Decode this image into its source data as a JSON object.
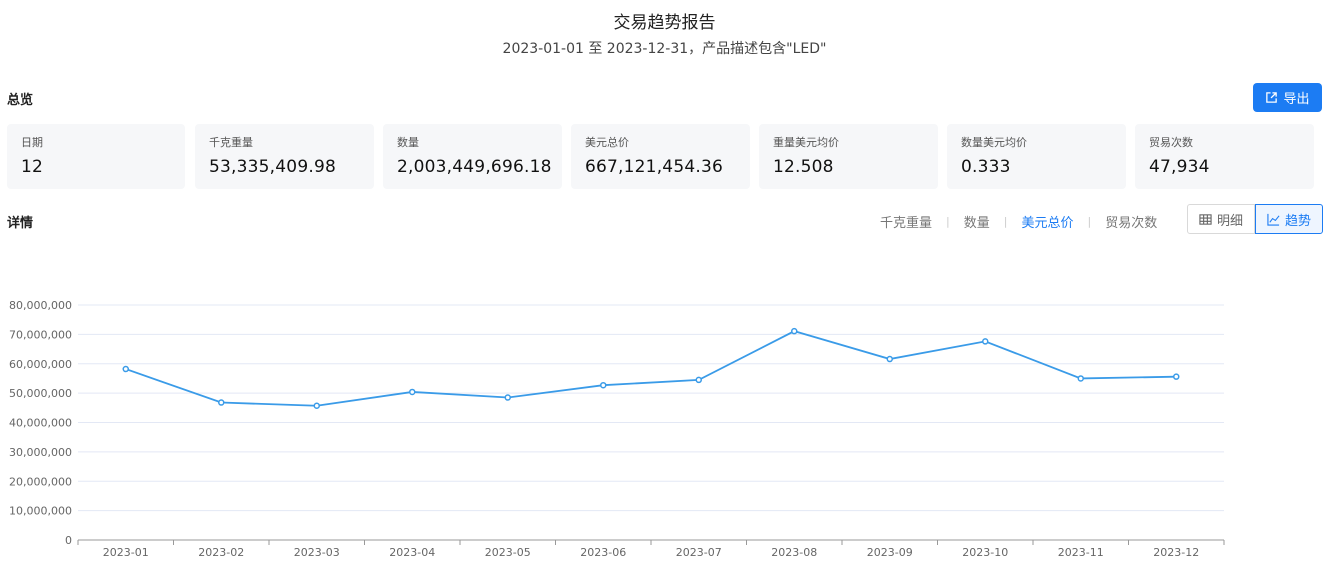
{
  "header": {
    "title": "交易趋势报告",
    "subtitle": "2023-01-01 至 2023-12-31，产品描述包含\"LED\""
  },
  "overview": {
    "label": "总览",
    "export_label": "导出",
    "stats": [
      {
        "label": "日期",
        "value": "12"
      },
      {
        "label": "千克重量",
        "value": "53,335,409.98"
      },
      {
        "label": "数量",
        "value": "2,003,449,696.18"
      },
      {
        "label": "美元总价",
        "value": "667,121,454.36"
      },
      {
        "label": "重量美元均价",
        "value": "12.508"
      },
      {
        "label": "数量美元均价",
        "value": "0.333"
      },
      {
        "label": "贸易次数",
        "value": "47,934"
      }
    ]
  },
  "details": {
    "label": "详情",
    "metric_tabs": [
      "千克重量",
      "数量",
      "美元总价",
      "贸易次数"
    ],
    "active_tab": "美元总价",
    "view_buttons": [
      "明细",
      "趋势"
    ],
    "active_view": "趋势"
  },
  "colors": {
    "accent": "#1c7cf3",
    "line": "#3a9be8",
    "grid": "#e3e8f5"
  },
  "chart_data": {
    "type": "line",
    "title": "",
    "xlabel": "",
    "ylabel": "",
    "categories": [
      "2023-01",
      "2023-02",
      "2023-03",
      "2023-04",
      "2023-05",
      "2023-06",
      "2023-07",
      "2023-08",
      "2023-09",
      "2023-10",
      "2023-11",
      "2023-12"
    ],
    "values": [
      58200000,
      46800000,
      45700000,
      50400000,
      48500000,
      52700000,
      54500000,
      71100000,
      61600000,
      67600000,
      55000000,
      55600000
    ],
    "ylim": [
      0,
      80000000
    ],
    "yticks": [
      "0",
      "10,000,000",
      "20,000,000",
      "30,000,000",
      "40,000,000",
      "50,000,000",
      "60,000,000",
      "70,000,000",
      "80,000,000"
    ],
    "grid": true,
    "legend": "none"
  }
}
